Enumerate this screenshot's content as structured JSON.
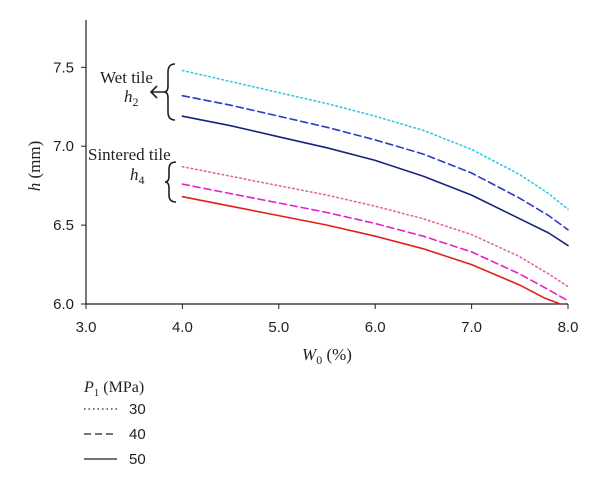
{
  "chart_data": {
    "type": "line",
    "xlabel": {
      "main": "W",
      "sub": "0",
      "unit": " (%)"
    },
    "ylabel": {
      "main": "h",
      "unit": " (mm)"
    },
    "xlim": [
      3.0,
      8.0
    ],
    "ylim": [
      6.0,
      7.8
    ],
    "xticks": [
      "3.0",
      "4.0",
      "5.0",
      "6.0",
      "7.0",
      "8.0"
    ],
    "yticks": [
      "6.0",
      "6.5",
      "7.0",
      "7.5"
    ],
    "grid": false,
    "series": [
      {
        "group": "wet",
        "pressure": "30",
        "style": "dotted",
        "color": "#34c6e8",
        "x": [
          4.0,
          4.5,
          5.0,
          5.5,
          6.0,
          6.5,
          7.0,
          7.5,
          7.8,
          8.0
        ],
        "y": [
          7.48,
          7.41,
          7.34,
          7.27,
          7.19,
          7.1,
          6.98,
          6.82,
          6.7,
          6.6
        ]
      },
      {
        "group": "wet",
        "pressure": "40",
        "style": "dashed",
        "color": "#2b3bc4",
        "x": [
          4.0,
          4.5,
          5.0,
          5.5,
          6.0,
          6.5,
          7.0,
          7.5,
          7.8,
          8.0
        ],
        "y": [
          7.32,
          7.26,
          7.19,
          7.12,
          7.04,
          6.95,
          6.83,
          6.67,
          6.56,
          6.47
        ]
      },
      {
        "group": "wet",
        "pressure": "50",
        "style": "solid",
        "color": "#1a237e",
        "x": [
          4.0,
          4.5,
          5.0,
          5.5,
          6.0,
          6.5,
          7.0,
          7.5,
          7.8,
          8.0
        ],
        "y": [
          7.19,
          7.13,
          7.06,
          6.99,
          6.91,
          6.81,
          6.69,
          6.54,
          6.45,
          6.37
        ]
      },
      {
        "group": "sintered",
        "pressure": "30",
        "style": "dotted",
        "color": "#e066a6",
        "x": [
          4.0,
          4.5,
          5.0,
          5.5,
          6.0,
          6.5,
          7.0,
          7.5,
          7.8,
          8.0
        ],
        "y": [
          6.87,
          6.81,
          6.75,
          6.69,
          6.62,
          6.54,
          6.44,
          6.3,
          6.19,
          6.11
        ]
      },
      {
        "group": "sintered",
        "pressure": "40",
        "style": "dashed",
        "color": "#e024c8",
        "x": [
          4.0,
          4.5,
          5.0,
          5.5,
          6.0,
          6.5,
          7.0,
          7.5,
          7.8,
          8.0
        ],
        "y": [
          6.76,
          6.7,
          6.64,
          6.58,
          6.51,
          6.43,
          6.33,
          6.19,
          6.09,
          6.02
        ]
      },
      {
        "group": "sintered",
        "pressure": "50",
        "style": "solid",
        "color": "#e0201c",
        "x": [
          4.0,
          4.5,
          5.0,
          5.5,
          6.0,
          6.5,
          7.0,
          7.5,
          7.75,
          7.92
        ],
        "y": [
          6.68,
          6.62,
          6.56,
          6.5,
          6.43,
          6.35,
          6.25,
          6.12,
          6.04,
          6.0
        ]
      }
    ],
    "annotations": {
      "wet": {
        "title": "Wet tile",
        "symbol": "h",
        "sub": "2"
      },
      "sintered": {
        "title": "Sintered tile",
        "symbol": "h",
        "sub": "4"
      }
    },
    "legend": {
      "position": "bottom-left",
      "title": {
        "main": "P",
        "sub": "1",
        "unit": " (MPa)"
      },
      "entries": [
        {
          "label": "30",
          "style": "dotted"
        },
        {
          "label": "40",
          "style": "dashed"
        },
        {
          "label": "50",
          "style": "solid"
        }
      ],
      "color": "#231f20"
    }
  }
}
